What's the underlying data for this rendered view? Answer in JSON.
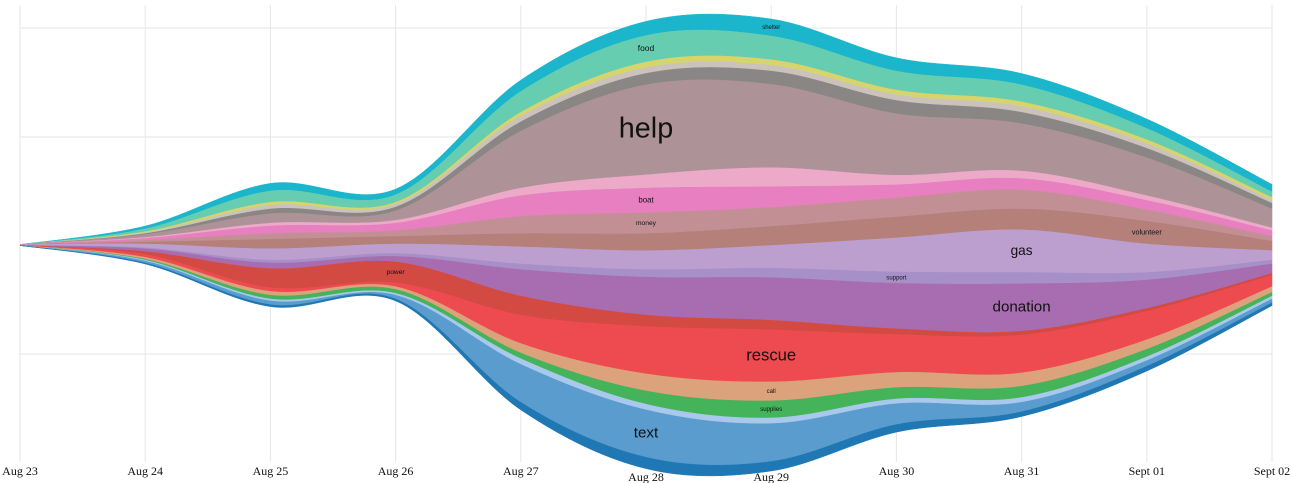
{
  "chart_data": {
    "type": "streamgraph",
    "x": [
      "Aug 23",
      "Aug 24",
      "Aug 25",
      "Aug 26",
      "Aug 27",
      "Aug 28",
      "Aug 29",
      "Aug 30",
      "Aug 31",
      "Sept 01",
      "Sept 02"
    ],
    "series": [
      {
        "name": "shelter",
        "color": "#1bb6cc",
        "values": [
          0,
          3,
          8,
          6,
          12,
          15,
          18,
          14,
          12,
          10,
          8
        ]
      },
      {
        "name": "food",
        "color": "#67cdb0",
        "values": [
          0,
          3,
          12,
          8,
          22,
          28,
          25,
          20,
          18,
          12,
          6
        ]
      },
      {
        "color": "#d6d46c",
        "values": [
          0,
          1,
          3,
          2,
          4,
          6,
          6,
          5,
          5,
          4,
          3
        ]
      },
      {
        "color": "#cbc3bb",
        "values": [
          0,
          1,
          4,
          3,
          6,
          6,
          6,
          6,
          6,
          5,
          3
        ]
      },
      {
        "color": "#8a8686",
        "values": [
          0,
          1,
          5,
          4,
          10,
          12,
          14,
          14,
          12,
          10,
          6
        ]
      },
      {
        "name": "help",
        "color": "#ad9398",
        "values": [
          0,
          3,
          10,
          10,
          60,
          95,
          88,
          65,
          50,
          40,
          20
        ]
      },
      {
        "color": "#eda9c8",
        "values": [
          0,
          1,
          3,
          3,
          8,
          14,
          20,
          10,
          8,
          5,
          3
        ]
      },
      {
        "name": "boat",
        "color": "#e77fc0",
        "values": [
          0,
          2,
          8,
          8,
          22,
          26,
          22,
          14,
          12,
          10,
          6
        ]
      },
      {
        "name": "money",
        "color": "#c29094",
        "values": [
          0,
          2,
          6,
          6,
          18,
          22,
          20,
          20,
          20,
          12,
          5
        ]
      },
      {
        "name": "volunteer",
        "color": "#b5807a",
        "values": [
          0,
          2,
          10,
          8,
          14,
          18,
          20,
          22,
          22,
          24,
          10
        ]
      },
      {
        "name": "gas",
        "color": "#bc9fcf",
        "values": [
          1,
          4,
          12,
          10,
          18,
          20,
          24,
          36,
          45,
          30,
          10
        ]
      },
      {
        "name": "support",
        "color": "#a78fc8",
        "values": [
          0,
          1,
          3,
          3,
          6,
          8,
          10,
          12,
          12,
          8,
          4
        ]
      },
      {
        "name": "donation",
        "color": "#a86cb0",
        "values": [
          0,
          3,
          6,
          6,
          28,
          40,
          45,
          48,
          50,
          30,
          10
        ]
      },
      {
        "name": "power",
        "color": "#d24a42",
        "values": [
          0,
          3,
          20,
          22,
          20,
          12,
          10,
          6,
          4,
          3,
          2
        ]
      },
      {
        "name": "rescue",
        "color": "#ee4b50",
        "values": [
          0,
          3,
          4,
          4,
          30,
          50,
          55,
          40,
          40,
          30,
          12
        ]
      },
      {
        "name": "call",
        "color": "#dca27c",
        "values": [
          0,
          2,
          4,
          3,
          10,
          18,
          20,
          16,
          14,
          10,
          6
        ]
      },
      {
        "name": "supplies",
        "color": "#44b35a",
        "values": [
          0,
          1,
          4,
          4,
          6,
          14,
          18,
          12,
          12,
          8,
          4
        ]
      },
      {
        "color": "#a9c9ec",
        "values": [
          0,
          1,
          2,
          2,
          6,
          6,
          6,
          5,
          5,
          4,
          3
        ]
      },
      {
        "name": "text",
        "color": "#5b9ccf",
        "values": [
          0,
          2,
          4,
          4,
          40,
          50,
          40,
          22,
          10,
          6,
          4
        ]
      },
      {
        "color": "#1f77b4",
        "values": [
          0,
          1,
          2,
          2,
          8,
          12,
          10,
          8,
          5,
          5,
          3
        ]
      }
    ]
  }
}
